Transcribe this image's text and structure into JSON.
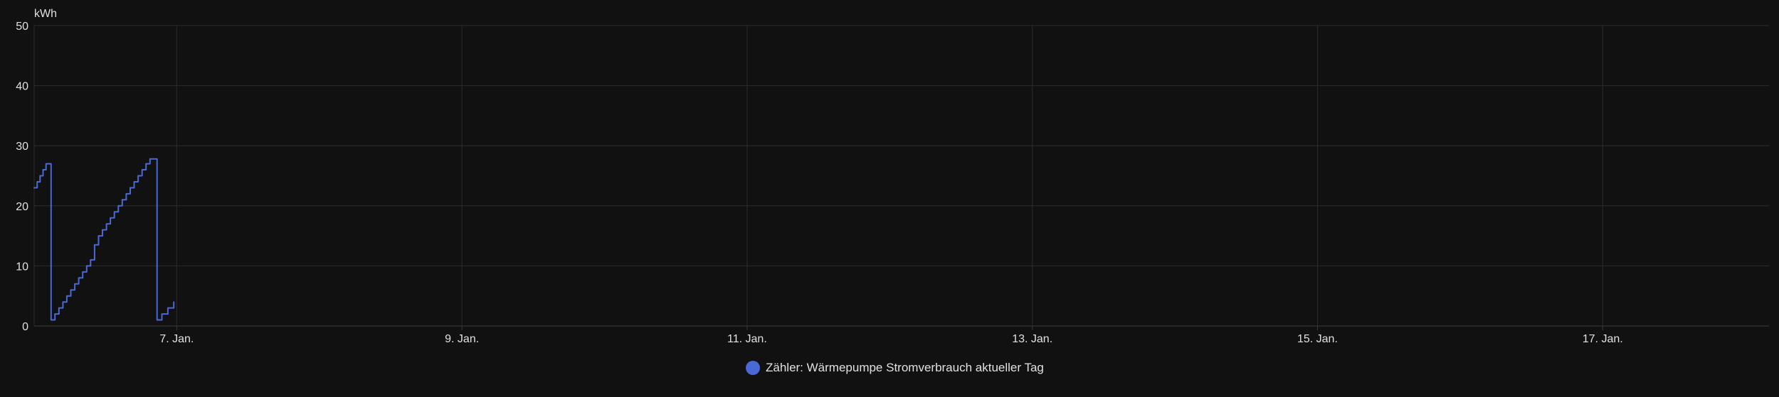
{
  "chart_data": {
    "type": "line",
    "title": "",
    "unit": "kWh",
    "ylim": [
      0,
      50
    ],
    "yticks": [
      0,
      10,
      20,
      30,
      40,
      50
    ],
    "xlim": [
      "2024-01-06T00:00",
      "2024-01-18T04:00"
    ],
    "xticks": [
      {
        "label": "7. Jan.",
        "x": "2024-01-07T00:00"
      },
      {
        "label": "9. Jan.",
        "x": "2024-01-09T00:00"
      },
      {
        "label": "11. Jan.",
        "x": "2024-01-11T00:00"
      },
      {
        "label": "13. Jan.",
        "x": "2024-01-13T00:00"
      },
      {
        "label": "15. Jan.",
        "x": "2024-01-15T00:00"
      },
      {
        "label": "17. Jan.",
        "x": "2024-01-17T00:00"
      }
    ],
    "grid": true,
    "legend_position": "bottom-center",
    "series": [
      {
        "name": "Zähler: Wärmepumpe Stromverbrauch aktueller Tag",
        "color": "#4a68d6",
        "step": true,
        "points": [
          [
            "2024-01-06T00:00",
            23
          ],
          [
            "2024-01-06T00:30",
            24
          ],
          [
            "2024-01-06T01:00",
            25
          ],
          [
            "2024-01-06T01:30",
            26
          ],
          [
            "2024-01-06T02:00",
            27
          ],
          [
            "2024-01-06T02:50",
            27
          ],
          [
            "2024-01-06T02:51",
            1
          ],
          [
            "2024-01-06T03:30",
            2
          ],
          [
            "2024-01-06T04:10",
            3
          ],
          [
            "2024-01-06T04:50",
            4
          ],
          [
            "2024-01-06T05:30",
            5
          ],
          [
            "2024-01-06T06:10",
            6
          ],
          [
            "2024-01-06T06:50",
            7
          ],
          [
            "2024-01-06T07:30",
            8
          ],
          [
            "2024-01-06T08:10",
            9
          ],
          [
            "2024-01-06T08:50",
            10
          ],
          [
            "2024-01-06T09:30",
            11
          ],
          [
            "2024-01-06T10:10",
            13.5
          ],
          [
            "2024-01-06T10:50",
            15
          ],
          [
            "2024-01-06T11:30",
            16
          ],
          [
            "2024-01-06T12:10",
            17
          ],
          [
            "2024-01-06T12:50",
            18
          ],
          [
            "2024-01-06T13:30",
            19
          ],
          [
            "2024-01-06T14:10",
            20
          ],
          [
            "2024-01-06T14:50",
            21
          ],
          [
            "2024-01-06T15:30",
            22
          ],
          [
            "2024-01-06T16:10",
            23
          ],
          [
            "2024-01-06T16:50",
            24
          ],
          [
            "2024-01-06T17:30",
            25
          ],
          [
            "2024-01-06T18:10",
            26
          ],
          [
            "2024-01-06T18:50",
            27
          ],
          [
            "2024-01-06T19:30",
            27.8
          ],
          [
            "2024-01-06T20:40",
            27.8
          ],
          [
            "2024-01-06T20:41",
            1
          ],
          [
            "2024-01-06T21:30",
            2
          ],
          [
            "2024-01-06T22:30",
            3
          ],
          [
            "2024-01-06T23:30",
            4
          ]
        ]
      }
    ]
  },
  "legend": {
    "label": "Zähler: Wärmepumpe Stromverbrauch aktueller Tag",
    "color": "#4a68d6"
  }
}
